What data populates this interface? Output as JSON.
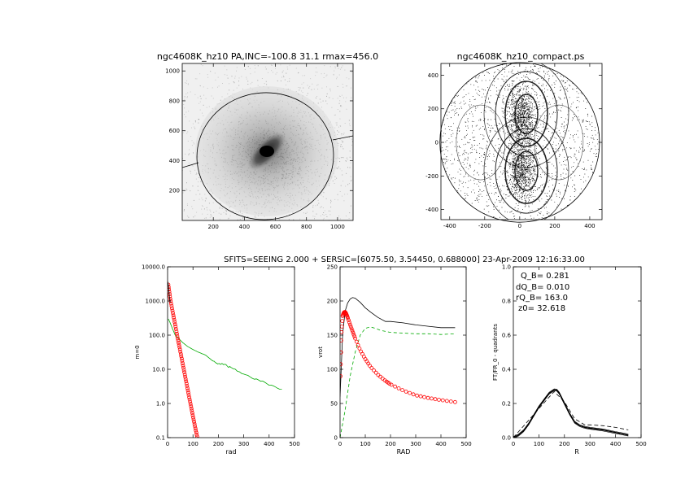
{
  "suptitle": "SFITS=SEEING 2.000 + SERSIC=[6075.50, 3.54450, 0.688000]  23-Apr-2009 12:16:33.00",
  "chart_data": [
    {
      "type": "heatmap",
      "title": "ngc4608K_hz10 PA,INC=-100.8 31.1 rmax=456.0",
      "xlim": [
        0,
        1100
      ],
      "ylim": [
        0,
        1050
      ],
      "xticks": [
        200,
        400,
        600,
        800,
        1000
      ],
      "yticks": [
        200,
        400,
        600,
        800,
        1000
      ],
      "xtick_labels": [
        "200",
        "400",
        "600",
        "800",
        "1000"
      ],
      "ytick_labels": [
        "200",
        "400",
        "600",
        "800",
        "1000"
      ],
      "center": [
        553,
        412
      ],
      "ellipse": {
        "a": 442,
        "b": 380,
        "angle": -5
      }
    },
    {
      "type": "scatter",
      "title": "ngc4608K_hz10_compact.ps",
      "xlim": [
        -450,
        470
      ],
      "ylim": [
        -460,
        470
      ],
      "xticks": [
        -400,
        -200,
        0,
        200,
        400
      ],
      "yticks": [
        -400,
        -200,
        0,
        200,
        400
      ],
      "xtick_labels": [
        "-400",
        "-200",
        "0",
        "200",
        "400"
      ],
      "ytick_labels": [
        "-400",
        "-200",
        "0",
        "200",
        "400"
      ],
      "rmax": 456,
      "lobes": [
        [
          10,
          160
        ],
        [
          10,
          -160
        ]
      ]
    },
    {
      "type": "line",
      "xlabel": "rad",
      "ylabel": "m=0",
      "yscale": "log",
      "xlim": [
        0,
        500
      ],
      "ylim": [
        0.1,
        10000
      ],
      "xticks": [
        0,
        100,
        200,
        300,
        400,
        500
      ],
      "xtick_labels": [
        "0",
        "100",
        "200",
        "300",
        "400",
        "500"
      ],
      "yticks": [
        0.1,
        1,
        10,
        100,
        1000,
        10000
      ],
      "ytick_labels": [
        "0.1",
        "1.0",
        "10.0",
        "100.0",
        "1000.0",
        "10000.0"
      ],
      "series": [
        {
          "color": "#00aa00",
          "x": [
            3,
            10,
            20,
            30,
            40,
            60,
            80,
            100,
            120,
            150,
            180,
            200,
            220,
            250,
            300,
            350,
            400,
            450
          ],
          "y": [
            300,
            230,
            150,
            100,
            85,
            60,
            46,
            38,
            32,
            26,
            17,
            15,
            14,
            11,
            7,
            5,
            3.6,
            2.6
          ]
        },
        {
          "color": "#ff0000",
          "marker": "circle",
          "x": [
            3,
            10,
            20,
            30,
            40,
            50,
            60,
            70,
            80,
            90,
            100,
            110,
            120
          ],
          "y": [
            3000,
            1200,
            480,
            200,
            80,
            34,
            14,
            5.8,
            2.4,
            1.0,
            0.42,
            0.18,
            0.08
          ]
        },
        {
          "color": "#000000",
          "x": [
            0,
            3,
            6,
            10
          ],
          "y": [
            3800,
            3000,
            1600,
            900
          ]
        }
      ]
    },
    {
      "type": "line",
      "xlabel": "RAD",
      "ylabel": "vrot",
      "xlim": [
        0,
        500
      ],
      "ylim": [
        0,
        250
      ],
      "xticks": [
        0,
        100,
        200,
        300,
        400,
        500
      ],
      "xtick_labels": [
        "0",
        "100",
        "200",
        "300",
        "400",
        "500"
      ],
      "yticks": [
        0,
        50,
        100,
        150,
        200,
        250
      ],
      "ytick_labels": [
        "0",
        "50",
        "100",
        "150",
        "200",
        "250"
      ],
      "series": [
        {
          "color": "#000000",
          "x": [
            0,
            10,
            20,
            30,
            40,
            50,
            60,
            80,
            100,
            120,
            150,
            180,
            200,
            250,
            300,
            350,
            400,
            456
          ],
          "y": [
            60,
            150,
            185,
            197,
            203,
            205,
            204,
            198,
            190,
            184,
            176,
            170,
            170,
            168,
            165,
            163,
            161,
            161
          ]
        },
        {
          "color": "#00aa00",
          "dash": "4,3",
          "x": [
            0,
            20,
            40,
            60,
            80,
            100,
            120,
            140,
            160,
            200,
            250,
            300,
            350,
            400,
            456
          ],
          "y": [
            0,
            40,
            90,
            125,
            150,
            160,
            162,
            160,
            157,
            154,
            153,
            152,
            152,
            151,
            152
          ]
        },
        {
          "color": "#ff0000",
          "marker": "circle",
          "x": [
            2,
            5,
            10,
            15,
            20,
            25,
            30,
            40,
            50,
            60,
            80,
            100,
            120,
            150,
            180,
            200,
            250,
            300,
            350,
            400,
            456
          ],
          "y": [
            90,
            150,
            178,
            183,
            184,
            181,
            176,
            165,
            155,
            145,
            128,
            115,
            104,
            92,
            83,
            78,
            69,
            62,
            58,
            55,
            52
          ]
        }
      ]
    },
    {
      "type": "line",
      "xlabel": "R",
      "ylabel": "FT/FR_0 - quadrants",
      "xlim": [
        0,
        500
      ],
      "ylim": [
        0,
        1.0
      ],
      "xticks": [
        0,
        100,
        200,
        300,
        400,
        500
      ],
      "xtick_labels": [
        "0",
        "100",
        "200",
        "300",
        "400",
        "500"
      ],
      "yticks": [
        0,
        0.2,
        0.4,
        0.6,
        0.8,
        1.0
      ],
      "ytick_labels": [
        "0.0",
        "0.2",
        "0.4",
        "0.6",
        "0.8",
        "1.0"
      ],
      "annotations": [
        "Q_B=  0.281",
        "dQ_B=  0.010",
        "rQ_B=  163.0",
        "z0= 32.618"
      ],
      "series": [
        {
          "color": "#000000",
          "x": [
            0,
            20,
            40,
            60,
            80,
            100,
            120,
            140,
            160,
            170,
            180,
            200,
            220,
            240,
            260,
            280,
            300,
            350,
            400,
            450
          ],
          "y": [
            0,
            0.015,
            0.04,
            0.08,
            0.13,
            0.18,
            0.22,
            0.26,
            0.28,
            0.278,
            0.26,
            0.2,
            0.14,
            0.09,
            0.07,
            0.06,
            0.055,
            0.045,
            0.03,
            0.015
          ]
        },
        {
          "color": "#000000",
          "dash": "5,3",
          "x": [
            0,
            100,
            160,
            200,
            240,
            280,
            300,
            350,
            400,
            450
          ],
          "y": [
            0,
            0.17,
            0.27,
            0.21,
            0.11,
            0.075,
            0.075,
            0.07,
            0.06,
            0.045
          ]
        }
      ]
    }
  ]
}
